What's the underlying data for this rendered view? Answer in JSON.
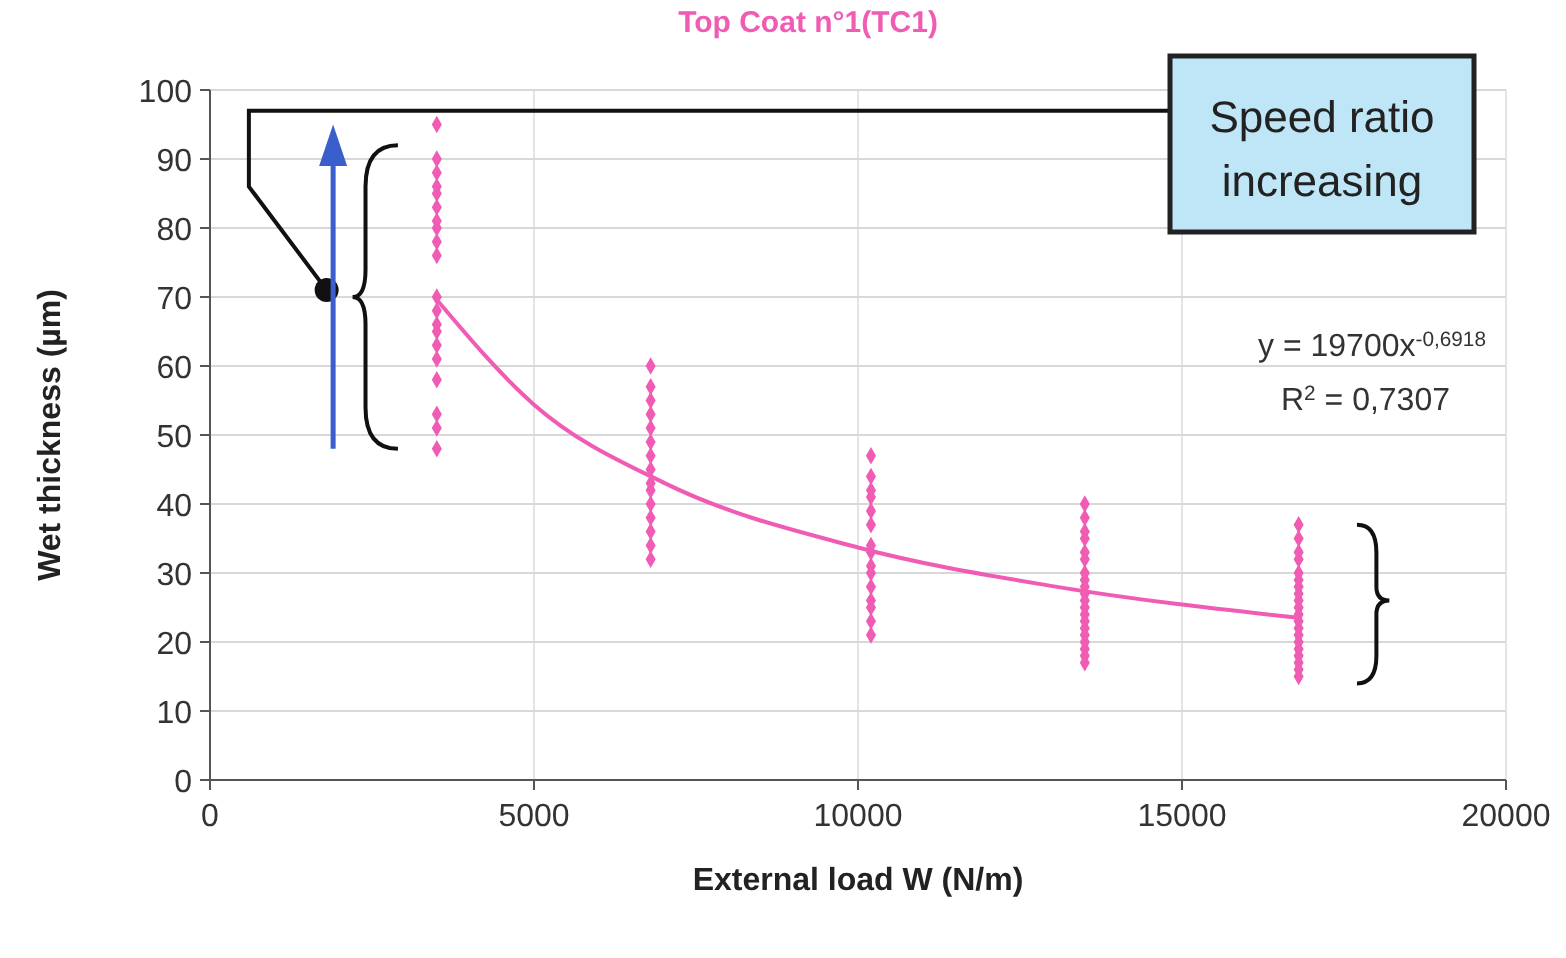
{
  "chart_data": {
    "type": "scatter",
    "title": "Top Coat n°1(TC1)",
    "xlabel": "External load W (N/m)",
    "ylabel": "Wet thickness (µm)",
    "xlim": [
      0,
      20000
    ],
    "xticks": [
      0,
      5000,
      10000,
      15000,
      20000
    ],
    "ylim": [
      0,
      100
    ],
    "yticks": [
      0,
      10,
      20,
      30,
      40,
      50,
      60,
      70,
      80,
      90,
      100
    ],
    "grid": true,
    "marker": "diamond",
    "series": [
      {
        "color": "#f05cb4",
        "x": [
          3500,
          3500,
          3500,
          3500,
          3500,
          3500,
          3500,
          3500,
          3500,
          3500,
          3500,
          3500,
          3500,
          3500,
          3500,
          3500,
          3500,
          3500,
          3500,
          3500,
          6800,
          6800,
          6800,
          6800,
          6800,
          6800,
          6800,
          6800,
          6800,
          6800,
          6800,
          6800,
          6800,
          6800,
          6800,
          10200,
          10200,
          10200,
          10200,
          10200,
          10200,
          10200,
          10200,
          10200,
          10200,
          10200,
          10200,
          10200,
          10200,
          10200,
          13500,
          13500,
          13500,
          13500,
          13500,
          13500,
          13500,
          13500,
          13500,
          13500,
          13500,
          13500,
          13500,
          13500,
          13500,
          13500,
          13500,
          13500,
          13500,
          13500,
          16800,
          16800,
          16800,
          16800,
          16800,
          16800,
          16800,
          16800,
          16800,
          16800,
          16800,
          16800,
          16800,
          16800,
          16800,
          16800,
          16800,
          16800,
          16800,
          16800
        ],
        "values": [
          95,
          90,
          88,
          86,
          85,
          83,
          81,
          80,
          78,
          76,
          70,
          68,
          66,
          65,
          63,
          61,
          58,
          53,
          51,
          48,
          60,
          57,
          55,
          53,
          51,
          49,
          47,
          45,
          43,
          42,
          40,
          38,
          36,
          34,
          32,
          47,
          44,
          42,
          41,
          39,
          37,
          34,
          33,
          31,
          30,
          28,
          26,
          25,
          23,
          21,
          40,
          38,
          36,
          35,
          33,
          32,
          30,
          29,
          28,
          27,
          26,
          25,
          24,
          23,
          22,
          21,
          20,
          19,
          18,
          17,
          37,
          35,
          33,
          32,
          30,
          29,
          28,
          27,
          26,
          25,
          24,
          23,
          22,
          21,
          20,
          19,
          18,
          17,
          16,
          15
        ]
      },
      {
        "type": "line",
        "color": "#f05cb4",
        "marker": "none",
        "x": [
          3500,
          5000,
          7000,
          10000,
          13000,
          16800
        ],
        "values": [
          69.6,
          54.4,
          43.1,
          33.7,
          28.1,
          23.5
        ]
      }
    ],
    "annotations": [
      "Speed ratio increasing",
      "y = 19700x$^{-0,6918}$",
      "R$^{2}$ = 0,7307"
    ]
  }
}
